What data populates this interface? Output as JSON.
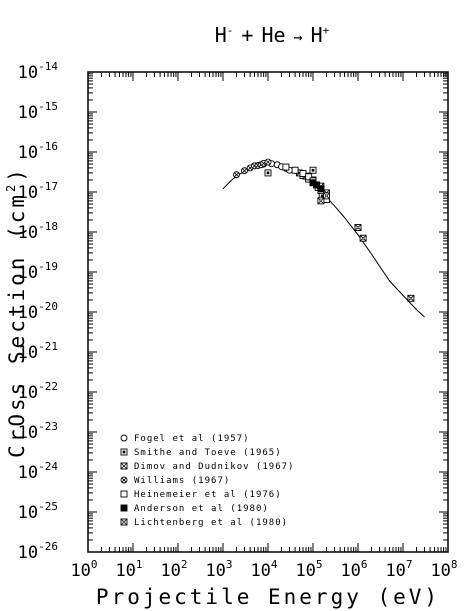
{
  "chart_data": {
    "type": "scatter",
    "title": {
      "lhs": "H",
      "lhs_sup": "-",
      "plus": "+",
      "reactant": "He",
      "arrow": "→",
      "product": "H",
      "product_sup": "+"
    },
    "xlabel": "Projectile Energy (eV)",
    "ylabel": "CrOss Section (cm",
    "ylabel_sup": "2",
    "ylabel_close": ")",
    "x_scale": "log",
    "y_scale": "log",
    "xlim": [
      1,
      100000000
    ],
    "ylim": [
      1e-26,
      1e-14
    ],
    "x_ticks": [
      {
        "base": "10",
        "exp": "0"
      },
      {
        "base": "10",
        "exp": "1"
      },
      {
        "base": "10",
        "exp": "2"
      },
      {
        "base": "10",
        "exp": "3"
      },
      {
        "base": "10",
        "exp": "4"
      },
      {
        "base": "10",
        "exp": "5"
      },
      {
        "base": "10",
        "exp": "6"
      },
      {
        "base": "10",
        "exp": "7"
      },
      {
        "base": "10",
        "exp": "8"
      }
    ],
    "y_ticks": [
      {
        "base": "10",
        "exp": "-14"
      },
      {
        "base": "10",
        "exp": "-15"
      },
      {
        "base": "10",
        "exp": "-16"
      },
      {
        "base": "10",
        "exp": "-17"
      },
      {
        "base": "10",
        "exp": "-18"
      },
      {
        "base": "10",
        "exp": "-19"
      },
      {
        "base": "10",
        "exp": "-20"
      },
      {
        "base": "10",
        "exp": "-21"
      },
      {
        "base": "10",
        "exp": "-22"
      },
      {
        "base": "10",
        "exp": "-23"
      },
      {
        "base": "10",
        "exp": "-24"
      },
      {
        "base": "10",
        "exp": "-25"
      },
      {
        "base": "10",
        "exp": "-26"
      }
    ],
    "legend_position": "bottom-left",
    "fit_curve": {
      "x": [
        1000,
        1500,
        2000,
        3000,
        5000,
        7000,
        10000,
        15000,
        20000,
        30000,
        50000,
        70000,
        100000,
        150000,
        200000,
        300000,
        500000,
        1000000,
        2000000,
        5000000,
        10000000,
        20000000,
        30000000
      ],
      "y": [
        1.2e-17,
        1.9e-17,
        2.5e-17,
        3.3e-17,
        4.2e-17,
        4.7e-17,
        4.9e-17,
        4.7e-17,
        4.3e-17,
        3.6e-17,
        2.6e-17,
        2e-17,
        1.55e-17,
        1.05e-17,
        7.5e-18,
        4.5e-18,
        2.3e-18,
        8.5e-19,
        2.8e-19,
        6e-20,
        2.6e-20,
        1.15e-20,
        7.5e-21
      ]
    },
    "series": [
      {
        "name": "Fogel et al (1957)",
        "marker": "circle",
        "x": [
          8000,
          12000,
          16000,
          20000,
          25000,
          30000
        ],
        "y": [
          5e-17,
          5.1e-17,
          4.8e-17,
          4.3e-17,
          3.9e-17,
          3.5e-17
        ]
      },
      {
        "name": "Smithe and Toeve (1965)",
        "marker": "square-dot",
        "x": [
          10000,
          60000,
          80000,
          100000,
          130000,
          160000
        ],
        "y": [
          3e-17,
          2.6e-17,
          2.1e-17,
          3.5e-17,
          1.3e-17,
          8e-18
        ]
      },
      {
        "name": "Dimov and Dudnikov (1967)",
        "marker": "square-x",
        "x": [
          50000,
          70000,
          100000,
          150000,
          200000
        ],
        "y": [
          3e-17,
          2.5e-17,
          2e-17,
          1.4e-17,
          9.5e-18
        ]
      },
      {
        "name": "Williams (1967)",
        "marker": "circle-x",
        "x": [
          2000,
          3000,
          4000,
          5000,
          6000,
          7000,
          8000,
          10000
        ],
        "y": [
          2.7e-17,
          3.4e-17,
          4e-17,
          4.5e-17,
          4.6e-17,
          4.8e-17,
          5.2e-17,
          5.6e-17
        ]
      },
      {
        "name": "Heinemeier et al (1976)",
        "marker": "square",
        "x": [
          25000,
          40000,
          60000,
          80000,
          100000,
          150000,
          200000
        ],
        "y": [
          4.2e-17,
          3.5e-17,
          2.9e-17,
          2.4e-17,
          1.9e-17,
          1.1e-17,
          6.5e-18
        ]
      },
      {
        "name": "Anderson et al (1980)",
        "marker": "square-filled",
        "x": [
          100000,
          120000,
          150000
        ],
        "y": [
          1.7e-17,
          1.5e-17,
          1.2e-17
        ]
      },
      {
        "name": "Lichtenberg et al (1980)",
        "marker": "square-cross",
        "x": [
          150000,
          200000,
          1000000,
          1300000,
          15000000
        ],
        "y": [
          6e-18,
          8e-18,
          1.3e-18,
          7e-19,
          2.2e-20
        ]
      }
    ]
  }
}
